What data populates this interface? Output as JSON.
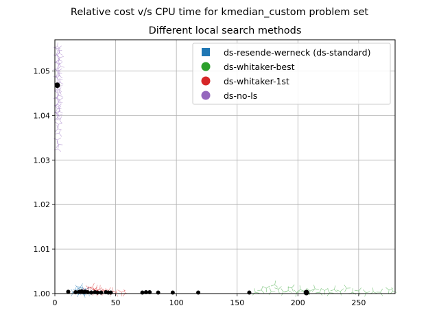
{
  "chart_data": {
    "type": "scatter",
    "title": "Relative cost v/s CPU time for kmedian_custom problem set",
    "subtitle": "Different local search methods",
    "xlabel": "",
    "ylabel": "",
    "xlim": [
      0,
      280
    ],
    "ylim": [
      1.0,
      1.057
    ],
    "x_ticks": [
      0,
      50,
      100,
      150,
      200,
      250
    ],
    "y_ticks": [
      1.0,
      1.01,
      1.02,
      1.03,
      1.04,
      1.05
    ],
    "x_tick_labels": [
      "0",
      "50",
      "100",
      "150",
      "200",
      "250"
    ],
    "y_tick_labels": [
      "1.00",
      "1.01",
      "1.02",
      "1.03",
      "1.04",
      "1.05"
    ],
    "grid": true,
    "legend_position": "top-right",
    "series": [
      {
        "name": "ds-resende-werneck (ds-standard)",
        "color": "#1f77b4",
        "marker": "square",
        "x": [
          15,
          17,
          18,
          19,
          20,
          21,
          22,
          23,
          24,
          25,
          26,
          27,
          28,
          20,
          22,
          24
        ],
        "y": [
          1.0002,
          1.0005,
          1.0008,
          1.0012,
          1.0003,
          1.0015,
          1.0006,
          1.001,
          1.0004,
          1.0009,
          1.0002,
          1.0007,
          1.0003,
          1.0,
          1.0001,
          1.0
        ]
      },
      {
        "name": "ds-whitaker-best",
        "color": "#2ca02c",
        "marker": "circle",
        "x": [
          165,
          170,
          174,
          178,
          181,
          184,
          188,
          192,
          195,
          199,
          202,
          206,
          210,
          214,
          218,
          222,
          226,
          230,
          235,
          240,
          245,
          250,
          256,
          262,
          268,
          275,
          278
        ],
        "y": [
          1.0003,
          1.0008,
          1.0012,
          1.0005,
          1.002,
          1.001,
          1.0004,
          1.0007,
          1.0013,
          1.0002,
          1.0009,
          1.0004,
          1.0006,
          1.0011,
          1.0003,
          1.0007,
          1.0002,
          1.0009,
          1.0005,
          1.0012,
          1.0003,
          1.0006,
          1.0002,
          1.0004,
          1.0003,
          1.0008,
          1.0005
        ]
      },
      {
        "name": "ds-whitaker-1st",
        "color": "#d62728",
        "marker": "circle",
        "x": [
          24,
          26,
          28,
          30,
          31,
          32,
          33,
          34,
          35,
          36,
          37,
          38,
          40,
          42,
          44,
          46,
          48,
          50,
          55,
          58
        ],
        "y": [
          1.0004,
          1.0008,
          1.0012,
          1.0005,
          1.0015,
          1.0009,
          1.0003,
          1.0011,
          1.0006,
          1.0002,
          1.001,
          1.0004,
          1.0007,
          1.0003,
          1.0006,
          1.0002,
          1.0005,
          1.0001,
          1.0003,
          1.0001
        ]
      },
      {
        "name": "ds-no-ls",
        "color": "#9467bd",
        "marker": "circle",
        "x": [
          2,
          3,
          2.5,
          3.5,
          2,
          4,
          3,
          2.5,
          3,
          4.5,
          2,
          3,
          2.5,
          3.5,
          2,
          3,
          4,
          2.5,
          3,
          2,
          3.5,
          2.5,
          3,
          2,
          4,
          3,
          2.5,
          3,
          2,
          3.5,
          2.5,
          3,
          2,
          4,
          3,
          2.5,
          3.5,
          2,
          3,
          2.5
        ],
        "y": [
          1.0555,
          1.055,
          1.0545,
          1.054,
          1.0535,
          1.053,
          1.0525,
          1.052,
          1.0515,
          1.051,
          1.0505,
          1.05,
          1.0495,
          1.049,
          1.0485,
          1.048,
          1.0475,
          1.047,
          1.0465,
          1.046,
          1.0455,
          1.045,
          1.0445,
          1.044,
          1.0435,
          1.043,
          1.0425,
          1.042,
          1.0415,
          1.041,
          1.0405,
          1.04,
          1.0395,
          1.039,
          1.038,
          1.037,
          1.036,
          1.0345,
          1.0335,
          1.0325
        ]
      }
    ],
    "black_points": {
      "color": "#000000",
      "x": [
        2,
        11,
        17,
        20,
        22,
        24,
        25,
        27,
        30,
        33,
        35,
        38,
        42,
        44,
        46,
        72,
        75,
        78,
        85,
        97,
        118,
        160,
        207
      ],
      "y": [
        1.0468,
        1.0004,
        1.0003,
        1.0004,
        1.0005,
        1.0003,
        1.0004,
        1.0003,
        1.0002,
        1.0003,
        1.0002,
        1.0002,
        1.0003,
        1.0002,
        1.0001,
        1.0002,
        1.0003,
        1.0003,
        1.0001,
        1.0001,
        1.0,
        1.0,
        1.0002
      ]
    }
  }
}
